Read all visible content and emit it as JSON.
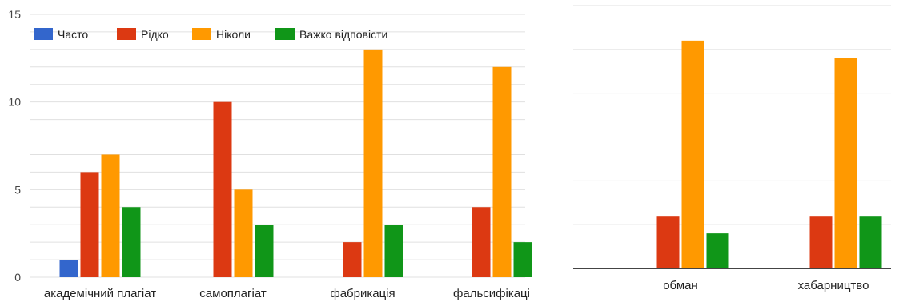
{
  "chart_data": [
    {
      "type": "bar",
      "categories": [
        "академічний плагіат",
        "самоплагіат",
        "фабрикація",
        "фальсифікаці"
      ],
      "series": [
        {
          "name": "Часто",
          "color": "#3366cc",
          "values": [
            1,
            0,
            0,
            0
          ]
        },
        {
          "name": "Рідко",
          "color": "#dc3912",
          "values": [
            6,
            10,
            2,
            4
          ]
        },
        {
          "name": "Ніколи",
          "color": "#ff9900",
          "values": [
            7,
            5,
            13,
            12
          ]
        },
        {
          "name": "Важко відповісти",
          "color": "#109618",
          "values": [
            4,
            3,
            3,
            2
          ]
        }
      ],
      "ylim": [
        0,
        15
      ],
      "yticks": [
        "0",
        "5",
        "10",
        "15"
      ],
      "grid": true,
      "legend_position": "top-left"
    },
    {
      "type": "bar",
      "categories": [
        "обман",
        "хабарництво"
      ],
      "series": [
        {
          "name": "Часто",
          "color": "#3366cc",
          "values": [
            0,
            0
          ]
        },
        {
          "name": "Рідко",
          "color": "#dc3912",
          "values": [
            3,
            3
          ]
        },
        {
          "name": "Ніколи",
          "color": "#ff9900",
          "values": [
            13,
            12
          ]
        },
        {
          "name": "Важко відповісти",
          "color": "#109618",
          "values": [
            2,
            3
          ]
        }
      ],
      "ylim": [
        0,
        15
      ],
      "yticks": [],
      "grid": true
    }
  ]
}
